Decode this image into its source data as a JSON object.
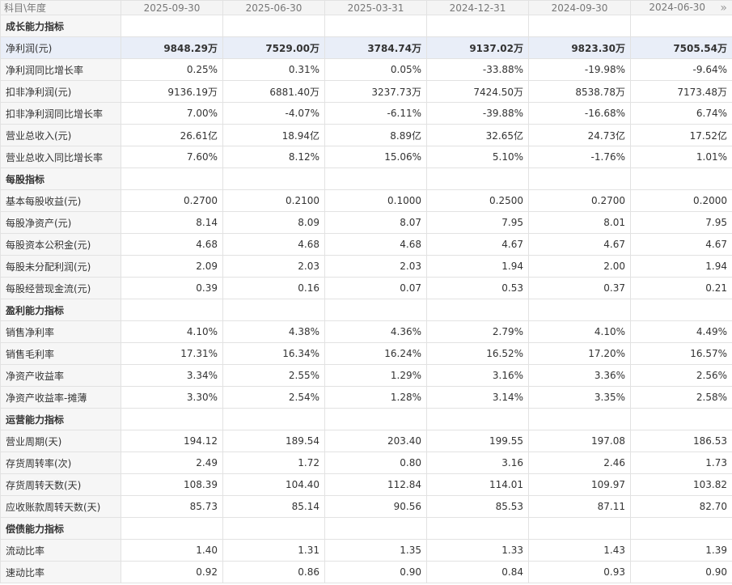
{
  "header": {
    "corner_label": "科目\\年度",
    "periods": [
      "2025-09-30",
      "2025-06-30",
      "2025-03-31",
      "2024-12-31",
      "2024-09-30",
      "2024-06-30"
    ],
    "next_icon": "»"
  },
  "rows": [
    {
      "type": "section",
      "label": "成长能力指标"
    },
    {
      "type": "highlight",
      "label": "净利润(元)",
      "values": [
        "9848.29万",
        "7529.00万",
        "3784.74万",
        "9137.02万",
        "9823.30万",
        "7505.54万"
      ]
    },
    {
      "type": "data",
      "label": "净利润同比增长率",
      "values": [
        "0.25%",
        "0.31%",
        "0.05%",
        "-33.88%",
        "-19.98%",
        "-9.64%"
      ]
    },
    {
      "type": "data",
      "label": "扣非净利润(元)",
      "values": [
        "9136.19万",
        "6881.40万",
        "3237.73万",
        "7424.50万",
        "8538.78万",
        "7173.48万"
      ]
    },
    {
      "type": "data",
      "label": "扣非净利润同比增长率",
      "values": [
        "7.00%",
        "-4.07%",
        "-6.11%",
        "-39.88%",
        "-16.68%",
        "6.74%"
      ]
    },
    {
      "type": "data",
      "label": "营业总收入(元)",
      "values": [
        "26.61亿",
        "18.94亿",
        "8.89亿",
        "32.65亿",
        "24.73亿",
        "17.52亿"
      ]
    },
    {
      "type": "data",
      "label": "营业总收入同比增长率",
      "values": [
        "7.60%",
        "8.12%",
        "15.06%",
        "5.10%",
        "-1.76%",
        "1.01%"
      ]
    },
    {
      "type": "section",
      "label": "每股指标"
    },
    {
      "type": "data",
      "label": "基本每股收益(元)",
      "values": [
        "0.2700",
        "0.2100",
        "0.1000",
        "0.2500",
        "0.2700",
        "0.2000"
      ]
    },
    {
      "type": "data",
      "label": "每股净资产(元)",
      "values": [
        "8.14",
        "8.09",
        "8.07",
        "7.95",
        "8.01",
        "7.95"
      ]
    },
    {
      "type": "data",
      "label": "每股资本公积金(元)",
      "values": [
        "4.68",
        "4.68",
        "4.68",
        "4.67",
        "4.67",
        "4.67"
      ]
    },
    {
      "type": "data",
      "label": "每股未分配利润(元)",
      "values": [
        "2.09",
        "2.03",
        "2.03",
        "1.94",
        "2.00",
        "1.94"
      ]
    },
    {
      "type": "data",
      "label": "每股经营现金流(元)",
      "values": [
        "0.39",
        "0.16",
        "0.07",
        "0.53",
        "0.37",
        "0.21"
      ]
    },
    {
      "type": "section",
      "label": "盈利能力指标"
    },
    {
      "type": "data",
      "label": "销售净利率",
      "values": [
        "4.10%",
        "4.38%",
        "4.36%",
        "2.79%",
        "4.10%",
        "4.49%"
      ]
    },
    {
      "type": "data",
      "label": "销售毛利率",
      "values": [
        "17.31%",
        "16.34%",
        "16.24%",
        "16.52%",
        "17.20%",
        "16.57%"
      ]
    },
    {
      "type": "data",
      "label": "净资产收益率",
      "values": [
        "3.34%",
        "2.55%",
        "1.29%",
        "3.16%",
        "3.36%",
        "2.56%"
      ]
    },
    {
      "type": "data",
      "label": "净资产收益率-摊薄",
      "values": [
        "3.30%",
        "2.54%",
        "1.28%",
        "3.14%",
        "3.35%",
        "2.58%"
      ]
    },
    {
      "type": "section",
      "label": "运营能力指标"
    },
    {
      "type": "data",
      "label": "营业周期(天)",
      "values": [
        "194.12",
        "189.54",
        "203.40",
        "199.55",
        "197.08",
        "186.53"
      ]
    },
    {
      "type": "data",
      "label": "存货周转率(次)",
      "values": [
        "2.49",
        "1.72",
        "0.80",
        "3.16",
        "2.46",
        "1.73"
      ]
    },
    {
      "type": "data",
      "label": "存货周转天数(天)",
      "values": [
        "108.39",
        "104.40",
        "112.84",
        "114.01",
        "109.97",
        "103.82"
      ]
    },
    {
      "type": "data",
      "label": "应收账款周转天数(天)",
      "values": [
        "85.73",
        "85.14",
        "90.56",
        "85.53",
        "87.11",
        "82.70"
      ]
    },
    {
      "type": "section",
      "label": "偿债能力指标"
    },
    {
      "type": "data",
      "label": "流动比率",
      "values": [
        "1.40",
        "1.31",
        "1.35",
        "1.33",
        "1.43",
        "1.39"
      ]
    },
    {
      "type": "data",
      "label": "速动比率",
      "values": [
        "0.92",
        "0.86",
        "0.90",
        "0.84",
        "0.93",
        "0.90"
      ]
    }
  ]
}
